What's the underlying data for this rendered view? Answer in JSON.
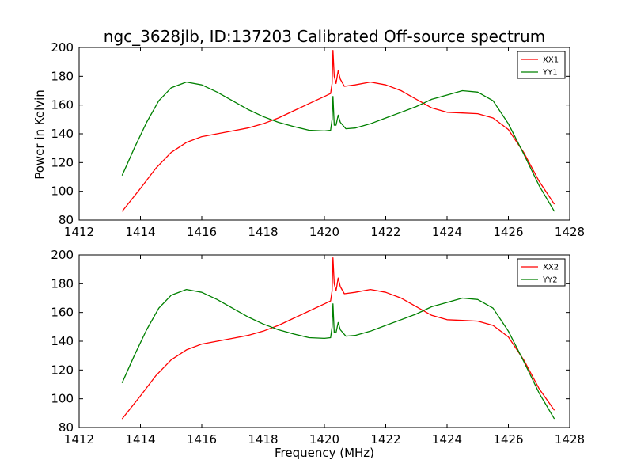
{
  "figure": {
    "title": "ngc_3628jlb, ID:137203 Calibrated Off-source spectrum",
    "xlabel": "Frequency (MHz)",
    "ylabel": "Power in Kelvin"
  },
  "chart_data": [
    {
      "type": "line",
      "title": "ngc_3628jlb, ID:137203 Calibrated Off-source spectrum",
      "xlabel": "",
      "ylabel": "Power in Kelvin",
      "xlim": [
        1412,
        1428
      ],
      "ylim": [
        80,
        200
      ],
      "xticks": [
        1412,
        1414,
        1416,
        1418,
        1420,
        1422,
        1424,
        1426,
        1428
      ],
      "yticks": [
        80,
        100,
        120,
        140,
        160,
        180,
        200
      ],
      "grid": false,
      "legend": "top-right",
      "series": [
        {
          "name": "XX1",
          "color": "#ff0000",
          "points": [
            [
              1413.4,
              86
            ],
            [
              1414.0,
              102
            ],
            [
              1414.5,
              116
            ],
            [
              1415.0,
              127
            ],
            [
              1415.5,
              134
            ],
            [
              1416.0,
              138
            ],
            [
              1416.5,
              140
            ],
            [
              1417.0,
              142
            ],
            [
              1417.5,
              144
            ],
            [
              1418.0,
              147
            ],
            [
              1418.5,
              151
            ],
            [
              1419.0,
              156
            ],
            [
              1419.5,
              161
            ],
            [
              1420.0,
              166
            ],
            [
              1420.2,
              168
            ],
            [
              1420.25,
              175
            ],
            [
              1420.28,
              198
            ],
            [
              1420.32,
              180
            ],
            [
              1420.38,
              175
            ],
            [
              1420.45,
              184
            ],
            [
              1420.52,
              178
            ],
            [
              1420.65,
              173
            ],
            [
              1421.0,
              174
            ],
            [
              1421.5,
              176
            ],
            [
              1422.0,
              174
            ],
            [
              1422.5,
              170
            ],
            [
              1423.0,
              164
            ],
            [
              1423.5,
              158
            ],
            [
              1424.0,
              155
            ],
            [
              1424.5,
              154.5
            ],
            [
              1425.0,
              154
            ],
            [
              1425.5,
              151
            ],
            [
              1426.0,
              143
            ],
            [
              1426.5,
              127
            ],
            [
              1427.0,
              107
            ],
            [
              1427.5,
              91
            ]
          ]
        },
        {
          "name": "YY1",
          "color": "#008000",
          "points": [
            [
              1413.4,
              111
            ],
            [
              1413.8,
              130
            ],
            [
              1414.2,
              148
            ],
            [
              1414.6,
              163
            ],
            [
              1415.0,
              172
            ],
            [
              1415.5,
              176
            ],
            [
              1416.0,
              174
            ],
            [
              1416.5,
              169
            ],
            [
              1417.0,
              163
            ],
            [
              1417.5,
              157
            ],
            [
              1418.0,
              152
            ],
            [
              1418.5,
              148
            ],
            [
              1419.0,
              145
            ],
            [
              1419.5,
              142.5
            ],
            [
              1420.0,
              142
            ],
            [
              1420.2,
              142.5
            ],
            [
              1420.25,
              150
            ],
            [
              1420.28,
              166
            ],
            [
              1420.32,
              146
            ],
            [
              1420.38,
              146
            ],
            [
              1420.45,
              153
            ],
            [
              1420.52,
              148
            ],
            [
              1420.7,
              143.5
            ],
            [
              1421.0,
              144
            ],
            [
              1421.5,
              147
            ],
            [
              1422.0,
              151
            ],
            [
              1422.5,
              155
            ],
            [
              1423.0,
              159
            ],
            [
              1423.5,
              164
            ],
            [
              1424.0,
              167
            ],
            [
              1424.5,
              170
            ],
            [
              1425.0,
              169
            ],
            [
              1425.5,
              163
            ],
            [
              1426.0,
              147
            ],
            [
              1426.5,
              126
            ],
            [
              1427.0,
              104
            ],
            [
              1427.5,
              86
            ]
          ]
        }
      ]
    },
    {
      "type": "line",
      "title": "",
      "xlabel": "Frequency (MHz)",
      "ylabel": "",
      "xlim": [
        1412,
        1428
      ],
      "ylim": [
        80,
        200
      ],
      "xticks": [
        1412,
        1414,
        1416,
        1418,
        1420,
        1422,
        1424,
        1426,
        1428
      ],
      "yticks": [
        80,
        100,
        120,
        140,
        160,
        180,
        200
      ],
      "grid": false,
      "legend": "top-right",
      "series": [
        {
          "name": "XX2",
          "color": "#ff0000",
          "points": [
            [
              1413.4,
              86
            ],
            [
              1414.0,
              102
            ],
            [
              1414.5,
              116
            ],
            [
              1415.0,
              127
            ],
            [
              1415.5,
              134
            ],
            [
              1416.0,
              138
            ],
            [
              1416.5,
              140
            ],
            [
              1417.0,
              142
            ],
            [
              1417.5,
              144
            ],
            [
              1418.0,
              147
            ],
            [
              1418.5,
              151
            ],
            [
              1419.0,
              156
            ],
            [
              1419.5,
              161
            ],
            [
              1420.0,
              166
            ],
            [
              1420.2,
              168
            ],
            [
              1420.25,
              175
            ],
            [
              1420.28,
              198
            ],
            [
              1420.32,
              180
            ],
            [
              1420.38,
              175
            ],
            [
              1420.45,
              184
            ],
            [
              1420.52,
              178
            ],
            [
              1420.65,
              173
            ],
            [
              1421.0,
              174
            ],
            [
              1421.5,
              176
            ],
            [
              1422.0,
              174
            ],
            [
              1422.5,
              170
            ],
            [
              1423.0,
              164
            ],
            [
              1423.5,
              158
            ],
            [
              1424.0,
              155
            ],
            [
              1424.5,
              154.5
            ],
            [
              1425.0,
              154
            ],
            [
              1425.5,
              151
            ],
            [
              1426.0,
              143
            ],
            [
              1426.5,
              127
            ],
            [
              1427.0,
              107
            ],
            [
              1427.5,
              92
            ]
          ]
        },
        {
          "name": "YY2",
          "color": "#008000",
          "points": [
            [
              1413.4,
              111
            ],
            [
              1413.8,
              130
            ],
            [
              1414.2,
              148
            ],
            [
              1414.6,
              163
            ],
            [
              1415.0,
              172
            ],
            [
              1415.5,
              176
            ],
            [
              1416.0,
              174
            ],
            [
              1416.5,
              169
            ],
            [
              1417.0,
              163
            ],
            [
              1417.5,
              157
            ],
            [
              1418.0,
              152
            ],
            [
              1418.5,
              148
            ],
            [
              1419.0,
              145
            ],
            [
              1419.5,
              142.5
            ],
            [
              1420.0,
              142
            ],
            [
              1420.2,
              142.5
            ],
            [
              1420.25,
              150
            ],
            [
              1420.28,
              166
            ],
            [
              1420.32,
              146
            ],
            [
              1420.38,
              146
            ],
            [
              1420.45,
              153
            ],
            [
              1420.52,
              148
            ],
            [
              1420.7,
              143.5
            ],
            [
              1421.0,
              144
            ],
            [
              1421.5,
              147
            ],
            [
              1422.0,
              151
            ],
            [
              1422.5,
              155
            ],
            [
              1423.0,
              159
            ],
            [
              1423.5,
              164
            ],
            [
              1424.0,
              167
            ],
            [
              1424.5,
              170
            ],
            [
              1425.0,
              169
            ],
            [
              1425.5,
              163
            ],
            [
              1426.0,
              147
            ],
            [
              1426.5,
              126
            ],
            [
              1427.0,
              104
            ],
            [
              1427.5,
              86
            ]
          ]
        }
      ]
    }
  ]
}
